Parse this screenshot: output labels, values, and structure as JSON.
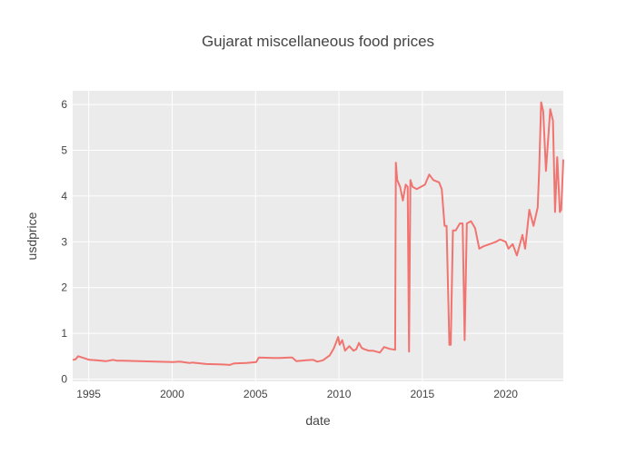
{
  "chart_data": {
    "type": "line",
    "title": "Gujarat miscellaneous food prices",
    "xlabel": "date",
    "ylabel": "usdprice",
    "xlim": [
      "1994-01-15",
      "2023-06-15"
    ],
    "ylim": [
      -0.05,
      6.3
    ],
    "x_ticks": [
      {
        "label": "1995",
        "date": "1995-01-01"
      },
      {
        "label": "2000",
        "date": "2000-01-01"
      },
      {
        "label": "2005",
        "date": "2005-01-01"
      },
      {
        "label": "2010",
        "date": "2010-01-01"
      },
      {
        "label": "2015",
        "date": "2015-01-01"
      },
      {
        "label": "2020",
        "date": "2020-01-01"
      }
    ],
    "y_ticks": [
      0,
      1,
      2,
      3,
      4,
      5,
      6
    ],
    "grid": true,
    "plot_background": "#ebebeb",
    "line_color": "#f07470",
    "series": [
      {
        "x": [
          "1994-01-15",
          "1994-03-15",
          "1994-05-15",
          "1994-08-15",
          "1994-11-15",
          "1995-01-15",
          "1995-06-15",
          "1996-01-15",
          "1996-06-15",
          "1996-09-15",
          "1997-01-15",
          "1998-01-15",
          "1999-01-15",
          "2000-01-15",
          "2000-06-15",
          "2001-01-15",
          "2001-03-15",
          "2002-01-15",
          "2003-01-15",
          "2003-06-15",
          "2003-09-15",
          "2004-06-15",
          "2005-01-15",
          "2005-03-15",
          "2006-01-15",
          "2006-06-15",
          "2007-01-15",
          "2007-03-15",
          "2007-06-15",
          "2008-01-15",
          "2008-06-15",
          "2008-09-15",
          "2009-01-15",
          "2009-06-15",
          "2009-09-15",
          "2009-12-15",
          "2010-01-15",
          "2010-03-15",
          "2010-05-15",
          "2010-08-15",
          "2010-11-15",
          "2011-01-15",
          "2011-03-15",
          "2011-05-15",
          "2011-07-15",
          "2011-10-15",
          "2012-01-15",
          "2012-06-15",
          "2012-09-15",
          "2013-01-15",
          "2013-03-15",
          "2013-05-15",
          "2013-06-01",
          "2013-07-01",
          "2013-09-01",
          "2013-11-01",
          "2014-01-01",
          "2014-02-15",
          "2014-03-15",
          "2014-04-15",
          "2014-06-01",
          "2014-09-01",
          "2014-12-01",
          "2015-03-01",
          "2015-06-01",
          "2015-09-01",
          "2016-01-01",
          "2016-03-01",
          "2016-05-01",
          "2016-06-15",
          "2016-08-15",
          "2016-09-15",
          "2016-11-01",
          "2017-01-01",
          "2017-04-01",
          "2017-06-01",
          "2017-07-15",
          "2017-09-01",
          "2017-12-01",
          "2018-03-01",
          "2018-06-01",
          "2018-09-01",
          "2019-06-01",
          "2019-09-01",
          "2020-01-01",
          "2020-03-01",
          "2020-06-01",
          "2020-09-01",
          "2021-01-01",
          "2021-03-01",
          "2021-06-01",
          "2021-09-01",
          "2021-12-01",
          "2022-01-01",
          "2022-02-15",
          "2022-04-01",
          "2022-06-01",
          "2022-09-01",
          "2022-11-01",
          "2022-12-15",
          "2023-02-01",
          "2023-04-01",
          "2023-05-01",
          "2023-06-15"
        ],
        "y": [
          0.42,
          0.43,
          0.5,
          0.47,
          0.44,
          0.42,
          0.41,
          0.39,
          0.42,
          0.4,
          0.4,
          0.39,
          0.38,
          0.37,
          0.38,
          0.35,
          0.36,
          0.33,
          0.32,
          0.31,
          0.34,
          0.35,
          0.37,
          0.47,
          0.46,
          0.46,
          0.47,
          0.47,
          0.39,
          0.41,
          0.42,
          0.38,
          0.41,
          0.52,
          0.68,
          0.92,
          0.75,
          0.85,
          0.62,
          0.72,
          0.62,
          0.65,
          0.79,
          0.68,
          0.65,
          0.62,
          0.62,
          0.58,
          0.7,
          0.66,
          0.65,
          0.64,
          4.73,
          4.35,
          4.2,
          3.9,
          4.25,
          4.2,
          0.6,
          4.35,
          4.2,
          4.15,
          4.2,
          4.25,
          4.47,
          4.35,
          4.3,
          4.15,
          3.35,
          3.35,
          0.75,
          0.75,
          3.25,
          3.25,
          3.4,
          3.4,
          0.85,
          3.4,
          3.45,
          3.3,
          2.85,
          2.9,
          3.0,
          3.05,
          3.0,
          2.85,
          2.95,
          2.7,
          3.15,
          2.85,
          3.7,
          3.35,
          3.75,
          4.55,
          6.05,
          5.85,
          4.55,
          5.9,
          5.65,
          3.65,
          4.85,
          3.65,
          3.7,
          4.8
        ]
      }
    ]
  }
}
